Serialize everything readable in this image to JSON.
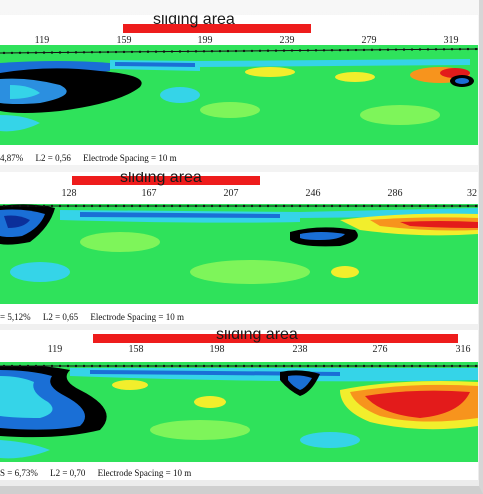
{
  "panels": [
    {
      "banner_label": "sliding area",
      "ticks": [
        "119",
        "159",
        "199",
        "239",
        "279",
        "319"
      ],
      "rms": "4,87%",
      "l2": "L2 = 0,56",
      "spacing": "Electrode Spacing = 10 m"
    },
    {
      "banner_label": "sliding area",
      "ticks": [
        "128",
        "167",
        "207",
        "246",
        "286",
        "32"
      ],
      "rms": "= 5,12%",
      "l2": "L2 = 0,65",
      "spacing": "Electrode Spacing = 10 m"
    },
    {
      "banner_label": "sliding area",
      "ticks": [
        "119",
        "158",
        "198",
        "238",
        "276",
        "316"
      ],
      "rms": "S = 6,73%",
      "l2": "L2 = 0,70",
      "spacing": "Electrode Spacing = 10 m"
    }
  ],
  "colors": {
    "banner": "#ee1c1c",
    "green": "#21e05a",
    "light_green": "#7ef55a",
    "cyan": "#35d4e8",
    "blue": "#1a6fd6",
    "dark_blue": "#0b2f9a",
    "yellow": "#f2ee2c",
    "orange": "#f7941d",
    "red": "#e31b1b",
    "black": "#000000"
  }
}
